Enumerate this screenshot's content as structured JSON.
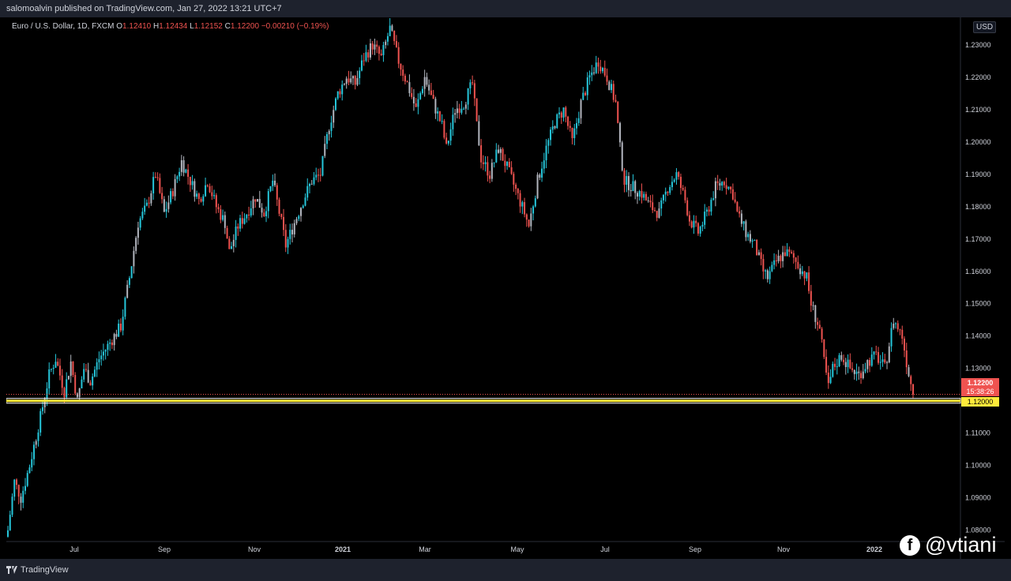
{
  "header": {
    "published": "salomoalvin published on TradingView.com, Jan 27, 2022 13:21 UTC+7"
  },
  "legend": {
    "symbol": "Euro / U.S. Dollar, 1D, FXCM",
    "open_label": "O",
    "open": "1.12410",
    "high_label": "H",
    "high": "1.12434",
    "low_label": "L",
    "low": "1.12152",
    "close_label": "C",
    "close": "1.12200",
    "change": "−0.00210 (−0.19%)"
  },
  "currency_button": "USD",
  "price_axis": {
    "current_price": "1.12200",
    "countdown": "15:38:26",
    "level_label": "1.12000"
  },
  "colors": {
    "up": "#26c6da",
    "down": "#ef5350",
    "neutral": "#b2b5be",
    "level": "#ffeb3b"
  },
  "footer": {
    "logo_text": "TradingView",
    "watermark": "@vtiani",
    "watermark_icon": "facebook-icon"
  },
  "chart_data": {
    "type": "candlestick",
    "symbol": "EURUSD",
    "interval": "1D",
    "y_ticks": [
      "1.23000",
      "1.22000",
      "1.21000",
      "1.20000",
      "1.19000",
      "1.18000",
      "1.17000",
      "1.16000",
      "1.15000",
      "1.14000",
      "1.13000",
      "1.12000",
      "1.11000",
      "1.10000",
      "1.09000",
      "1.08000"
    ],
    "x_ticks": [
      "Jul",
      "Sep",
      "Nov",
      "2021",
      "Mar",
      "May",
      "Jul",
      "Sep",
      "Nov",
      "2022"
    ],
    "ylim": [
      1.0765,
      1.2385
    ],
    "horizontal_levels": [
      1.12,
      1.1195
    ],
    "current_price": 1.122,
    "path": [
      [
        0,
        1.08
      ],
      [
        3,
        1.095
      ],
      [
        6,
        1.09
      ],
      [
        10,
        1.1
      ],
      [
        15,
        1.115
      ],
      [
        19,
        1.128
      ],
      [
        22,
        1.133
      ],
      [
        26,
        1.123
      ],
      [
        29,
        1.132
      ],
      [
        32,
        1.12
      ],
      [
        35,
        1.13
      ],
      [
        38,
        1.126
      ],
      [
        42,
        1.133
      ],
      [
        46,
        1.137
      ],
      [
        52,
        1.143
      ],
      [
        56,
        1.158
      ],
      [
        60,
        1.175
      ],
      [
        64,
        1.18
      ],
      [
        68,
        1.19
      ],
      [
        72,
        1.178
      ],
      [
        76,
        1.185
      ],
      [
        80,
        1.194
      ],
      [
        84,
        1.188
      ],
      [
        88,
        1.182
      ],
      [
        92,
        1.188
      ],
      [
        96,
        1.18
      ],
      [
        100,
        1.175
      ],
      [
        102,
        1.166
      ],
      [
        106,
        1.174
      ],
      [
        110,
        1.178
      ],
      [
        114,
        1.183
      ],
      [
        118,
        1.178
      ],
      [
        122,
        1.188
      ],
      [
        126,
        1.175
      ],
      [
        128,
        1.168
      ],
      [
        132,
        1.175
      ],
      [
        136,
        1.182
      ],
      [
        140,
        1.188
      ],
      [
        144,
        1.19
      ],
      [
        148,
        1.205
      ],
      [
        152,
        1.215
      ],
      [
        156,
        1.22
      ],
      [
        160,
        1.218
      ],
      [
        164,
        1.226
      ],
      [
        168,
        1.23
      ],
      [
        172,
        1.226
      ],
      [
        176,
        1.235
      ],
      [
        180,
        1.225
      ],
      [
        184,
        1.218
      ],
      [
        188,
        1.21
      ],
      [
        192,
        1.22
      ],
      [
        196,
        1.212
      ],
      [
        200,
        1.205
      ],
      [
        202,
        1.198
      ],
      [
        206,
        1.21
      ],
      [
        210,
        1.212
      ],
      [
        214,
        1.218
      ],
      [
        216,
        1.205
      ],
      [
        218,
        1.195
      ],
      [
        222,
        1.19
      ],
      [
        226,
        1.198
      ],
      [
        230,
        1.192
      ],
      [
        234,
        1.185
      ],
      [
        238,
        1.178
      ],
      [
        240,
        1.174
      ],
      [
        244,
        1.188
      ],
      [
        248,
        1.198
      ],
      [
        252,
        1.206
      ],
      [
        256,
        1.21
      ],
      [
        260,
        1.2
      ],
      [
        264,
        1.212
      ],
      [
        268,
        1.22
      ],
      [
        272,
        1.225
      ],
      [
        276,
        1.22
      ],
      [
        280,
        1.212
      ],
      [
        282,
        1.198
      ],
      [
        284,
        1.188
      ],
      [
        288,
        1.186
      ],
      [
        292,
        1.184
      ],
      [
        296,
        1.18
      ],
      [
        300,
        1.178
      ],
      [
        304,
        1.186
      ],
      [
        308,
        1.19
      ],
      [
        312,
        1.182
      ],
      [
        314,
        1.176
      ],
      [
        318,
        1.172
      ],
      [
        322,
        1.178
      ],
      [
        326,
        1.186
      ],
      [
        330,
        1.188
      ],
      [
        334,
        1.184
      ],
      [
        336,
        1.178
      ],
      [
        340,
        1.172
      ],
      [
        344,
        1.168
      ],
      [
        348,
        1.16
      ],
      [
        350,
        1.158
      ],
      [
        354,
        1.163
      ],
      [
        358,
        1.166
      ],
      [
        362,
        1.164
      ],
      [
        366,
        1.16
      ],
      [
        368,
        1.158
      ],
      [
        370,
        1.15
      ],
      [
        374,
        1.142
      ],
      [
        376,
        1.132
      ],
      [
        378,
        1.124
      ],
      [
        380,
        1.13
      ],
      [
        384,
        1.134
      ],
      [
        388,
        1.13
      ],
      [
        392,
        1.128
      ],
      [
        396,
        1.132
      ],
      [
        400,
        1.134
      ],
      [
        404,
        1.13
      ],
      [
        408,
        1.145
      ],
      [
        412,
        1.14
      ],
      [
        414,
        1.132
      ],
      [
        417,
        1.122
      ]
    ]
  }
}
